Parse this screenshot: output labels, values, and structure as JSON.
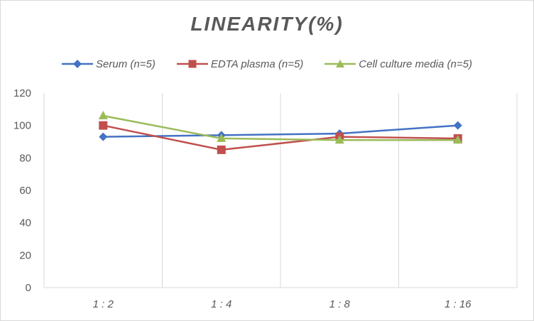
{
  "chart_data": {
    "type": "line",
    "title": "LINEARITY(%)",
    "xlabel": "",
    "ylabel": "",
    "categories": [
      "1:2",
      "1:4",
      "1:8",
      "1:16"
    ],
    "yticks": [
      0,
      20,
      40,
      60,
      80,
      100,
      120
    ],
    "ylim": [
      0,
      120
    ],
    "grid": "vertical",
    "legend": "top",
    "series": [
      {
        "name": "Serum (n=5)",
        "color": "#4472c4",
        "marker": "diamond",
        "values": [
          93,
          94,
          95,
          100
        ]
      },
      {
        "name": "EDTA plasma (n=5)",
        "color": "#c0504d",
        "marker": "square",
        "values": [
          100,
          85,
          93,
          92
        ]
      },
      {
        "name": "Cell culture media (n=5)",
        "color": "#9bbb59",
        "marker": "triangle",
        "values": [
          106,
          92,
          91,
          91
        ]
      }
    ]
  }
}
